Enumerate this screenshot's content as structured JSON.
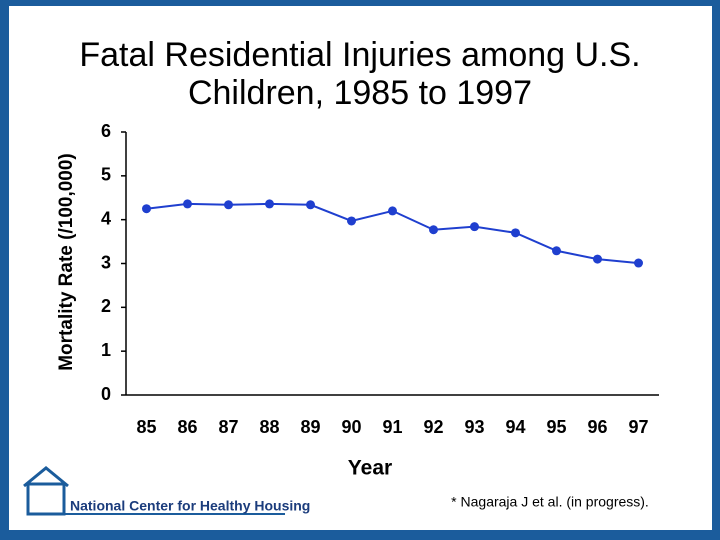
{
  "chart_data": {
    "type": "line",
    "title": "Fatal Residential Injuries among U.S.",
    "subtitle": "Children, 1985 to 1997",
    "x_label": "Year",
    "y_label": "Mortality Rate (/100,000)",
    "categories": [
      "85",
      "86",
      "87",
      "88",
      "89",
      "90",
      "91",
      "92",
      "93",
      "94",
      "95",
      "96",
      "97"
    ],
    "series": [
      {
        "name": "Mortality Rate",
        "color": "#1f3fcf",
        "values": [
          4.25,
          4.36,
          4.34,
          4.36,
          4.34,
          3.97,
          4.2,
          3.77,
          3.84,
          3.7,
          3.29,
          3.1,
          3.01
        ]
      }
    ],
    "ylim": [
      0,
      6
    ],
    "yticks": [
      0,
      1,
      2,
      3,
      4,
      5,
      6
    ],
    "grid": false,
    "annotations": [
      "* Nagaraja J et al. (in progress).",
      "National Center for Healthy Housing"
    ]
  }
}
